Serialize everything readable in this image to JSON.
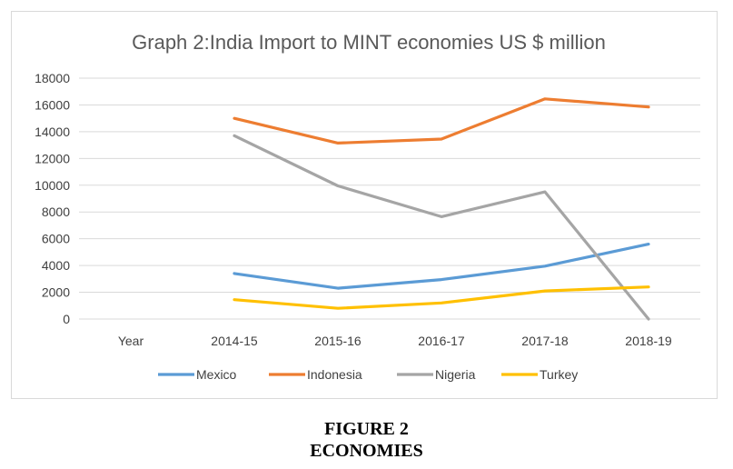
{
  "chart_data": {
    "type": "line",
    "title": "Graph 2:India Import to MINT economies US $ million",
    "categories": [
      "Year",
      "2014-15",
      "2015-16",
      "2016-17",
      "2017-18",
      "2018-19"
    ],
    "ylim": [
      0,
      18000
    ],
    "yticks": [
      "0",
      "2000",
      "4000",
      "6000",
      "8000",
      "10000",
      "12000",
      "14000",
      "16000",
      "18000"
    ],
    "grid": true,
    "legend_position": "bottom",
    "series": [
      {
        "name": "Mexico",
        "color": "#5b9bd5",
        "values": [
          null,
          3400,
          2300,
          2950,
          3950,
          5600
        ]
      },
      {
        "name": "Indonesia",
        "color": "#ed7d31",
        "values": [
          null,
          15000,
          13150,
          13450,
          16450,
          15850
        ]
      },
      {
        "name": "Nigeria",
        "color": "#a5a5a5",
        "values": [
          null,
          13700,
          9950,
          7650,
          9500,
          0
        ]
      },
      {
        "name": "Turkey",
        "color": "#ffc000",
        "values": [
          null,
          1450,
          800,
          1200,
          2100,
          2400
        ]
      }
    ]
  },
  "caption": {
    "figure_number": "FIGURE 2",
    "figure_title": "ECONOMIES"
  }
}
